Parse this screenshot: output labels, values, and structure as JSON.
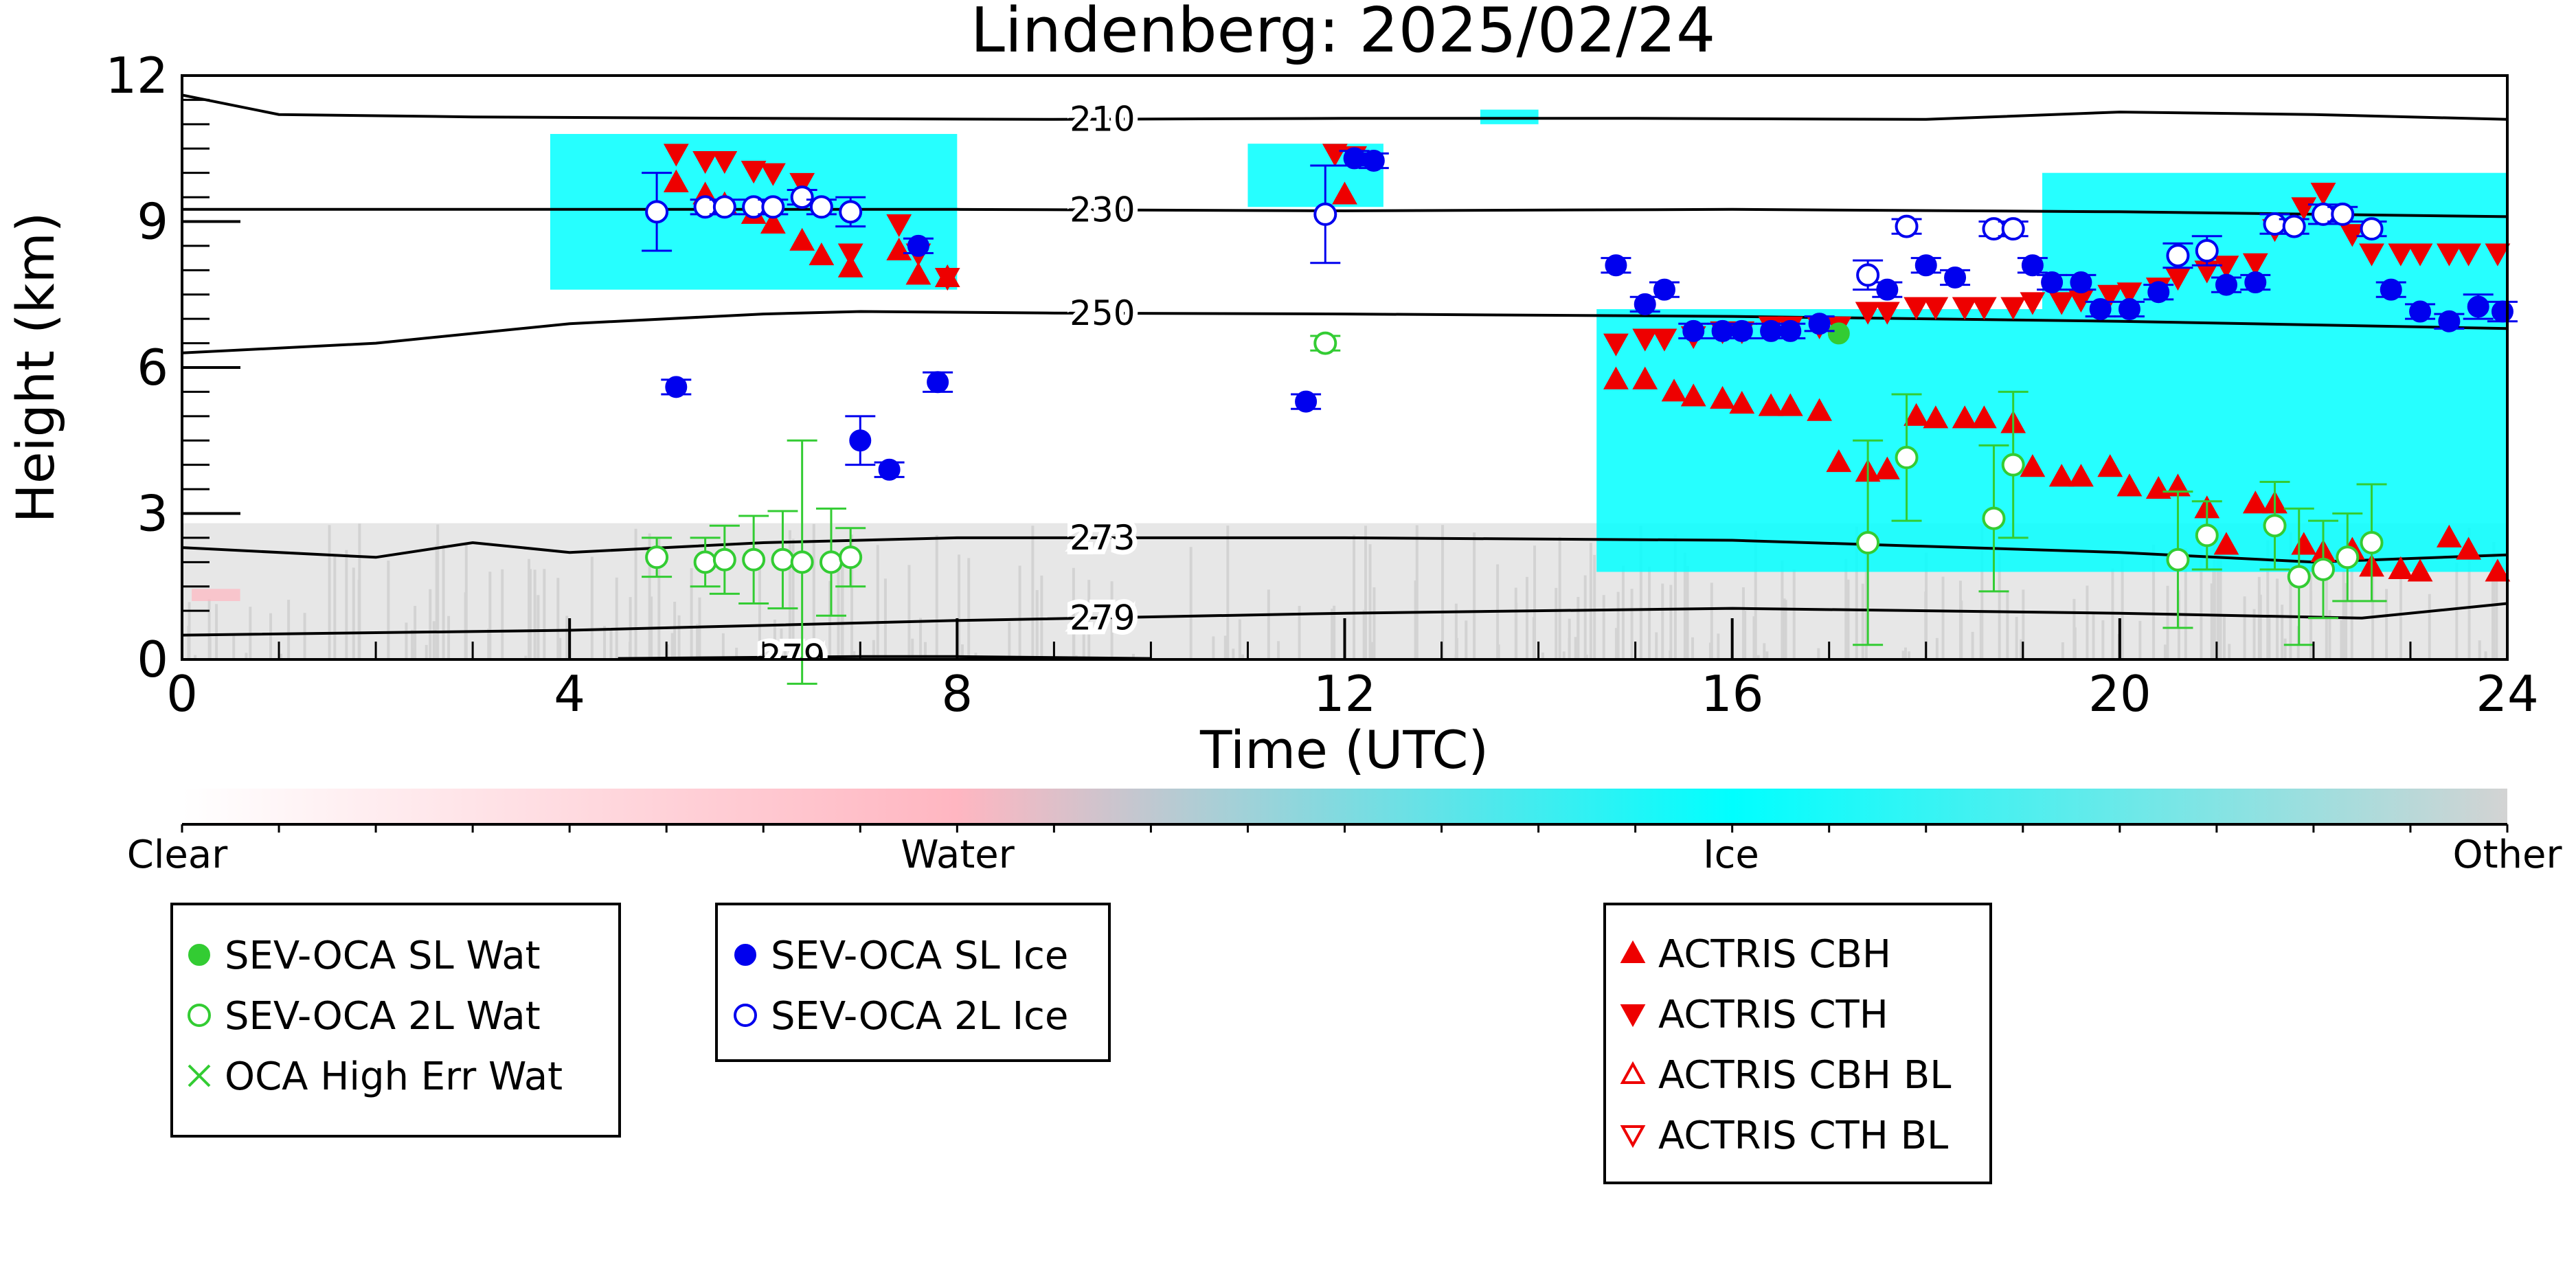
{
  "chart_data": {
    "type": "scatter",
    "title": "Lindenberg: 2025/02/24",
    "xlabel": "Time (UTC)",
    "ylabel": "Height (km)",
    "xlim": [
      0,
      24
    ],
    "ylim": [
      0,
      12
    ],
    "x_ticks": [
      "0",
      "4",
      "8",
      "12",
      "16",
      "20",
      "24"
    ],
    "y_ticks": [
      "0",
      "3",
      "6",
      "9",
      "12"
    ],
    "background_classification": {
      "colorbar_labels": [
        "Clear",
        "Water",
        "Ice",
        "Other"
      ],
      "colors": {
        "Clear": "#ffffff",
        "Water": "#ffb6c1",
        "Ice": "#00ffff",
        "Other": "#d3d3d3"
      },
      "ice_regions": [
        {
          "x0": 3.8,
          "x1": 8.0,
          "y0": 7.6,
          "y1": 10.8
        },
        {
          "x0": 11.0,
          "x1": 12.4,
          "y0": 9.3,
          "y1": 10.6
        },
        {
          "x0": 13.4,
          "x1": 14.0,
          "y0": 11.0,
          "y1": 11.3
        },
        {
          "x0": 14.6,
          "x1": 24.0,
          "y0": 1.8,
          "y1": 7.2
        },
        {
          "x0": 19.2,
          "x1": 24.0,
          "y0": 7.2,
          "y1": 10.0
        }
      ],
      "other_below_km": 2.8
    },
    "isotherms": [
      {
        "label": "210",
        "x": [
          0,
          1,
          3,
          6,
          9,
          12,
          15,
          18,
          20,
          22,
          24
        ],
        "y": [
          11.6,
          11.2,
          11.15,
          11.12,
          11.1,
          11.12,
          11.12,
          11.1,
          11.25,
          11.2,
          11.1
        ]
      },
      {
        "label": "230",
        "x": [
          0,
          4,
          8,
          12,
          16,
          20,
          24
        ],
        "y": [
          9.25,
          9.25,
          9.25,
          9.22,
          9.25,
          9.2,
          9.1
        ]
      },
      {
        "label": "250",
        "x": [
          0,
          2,
          4,
          6,
          7,
          9,
          12,
          16,
          20,
          24
        ],
        "y": [
          6.3,
          6.5,
          6.9,
          7.1,
          7.15,
          7.12,
          7.1,
          7.05,
          6.95,
          6.8
        ]
      },
      {
        "label": "273",
        "x": [
          0,
          2,
          3,
          4,
          6,
          8,
          12,
          16,
          20,
          22,
          24
        ],
        "y": [
          2.3,
          2.1,
          2.4,
          2.2,
          2.4,
          2.5,
          2.5,
          2.45,
          2.2,
          2.0,
          2.15
        ]
      },
      {
        "label": "279",
        "x": [
          0,
          4,
          8,
          12,
          16,
          20,
          22.5,
          24
        ],
        "y": [
          0.5,
          0.6,
          0.8,
          0.95,
          1.05,
          0.95,
          0.85,
          1.15
        ]
      },
      {
        "label": "279",
        "x": [
          4.5,
          7,
          8,
          10
        ],
        "y": [
          0.02,
          0.06,
          0.06,
          0.02
        ]
      }
    ],
    "series": [
      {
        "name": "SEV-OCA SL Wat",
        "marker": "filled-circle",
        "color": "#33cc33",
        "points": [
          {
            "x": 17.1,
            "y": 6.7
          }
        ]
      },
      {
        "name": "SEV-OCA 2L Wat",
        "marker": "open-circle",
        "color": "#33cc33",
        "points": [
          {
            "x": 4.9,
            "y": 2.1,
            "e": 0.4
          },
          {
            "x": 5.4,
            "y": 2.0,
            "e": 0.5
          },
          {
            "x": 5.6,
            "y": 2.05,
            "e": 0.7
          },
          {
            "x": 5.9,
            "y": 2.05,
            "e": 0.9
          },
          {
            "x": 6.2,
            "y": 2.05,
            "e": 1.0
          },
          {
            "x": 6.4,
            "y": 2.0,
            "e": 2.5
          },
          {
            "x": 6.7,
            "y": 2.0,
            "e": 1.1
          },
          {
            "x": 6.9,
            "y": 2.1,
            "e": 0.6
          },
          {
            "x": 11.8,
            "y": 6.5,
            "e": 0.15
          },
          {
            "x": 17.4,
            "y": 2.4,
            "e": 2.1
          },
          {
            "x": 17.8,
            "y": 4.15,
            "e": 1.3
          },
          {
            "x": 18.7,
            "y": 2.9,
            "e": 1.5
          },
          {
            "x": 18.9,
            "y": 4.0,
            "e": 1.5
          },
          {
            "x": 20.6,
            "y": 2.05,
            "e": 1.4
          },
          {
            "x": 20.9,
            "y": 2.55,
            "e": 0.7
          },
          {
            "x": 21.6,
            "y": 2.75,
            "e": 0.9
          },
          {
            "x": 21.85,
            "y": 1.7,
            "e": 1.4
          },
          {
            "x": 22.1,
            "y": 1.85,
            "e": 1.0
          },
          {
            "x": 22.35,
            "y": 2.1,
            "e": 0.9
          },
          {
            "x": 22.6,
            "y": 2.4,
            "e": 1.2
          }
        ]
      },
      {
        "name": "OCA High Err Wat",
        "marker": "x",
        "color": "#33cc33",
        "points": []
      },
      {
        "name": "SEV-OCA SL Ice",
        "marker": "filled-circle",
        "color": "#0000ee",
        "points": [
          {
            "x": 5.1,
            "y": 5.6,
            "e": 0.15
          },
          {
            "x": 7.0,
            "y": 4.5,
            "e": 0.5
          },
          {
            "x": 7.3,
            "y": 3.9,
            "e": 0.15
          },
          {
            "x": 7.6,
            "y": 8.5,
            "e": 0.15
          },
          {
            "x": 7.8,
            "y": 5.7,
            "e": 0.2
          },
          {
            "x": 11.6,
            "y": 5.3,
            "e": 0.15
          },
          {
            "x": 12.1,
            "y": 10.3,
            "e": 0.15
          },
          {
            "x": 12.3,
            "y": 10.25,
            "e": 0.15
          },
          {
            "x": 14.8,
            "y": 8.1,
            "e": 0.15
          },
          {
            "x": 15.1,
            "y": 7.3,
            "e": 0.15
          },
          {
            "x": 15.3,
            "y": 7.6,
            "e": 0.15
          },
          {
            "x": 15.6,
            "y": 6.75,
            "e": 0.15
          },
          {
            "x": 15.9,
            "y": 6.75,
            "e": 0.15
          },
          {
            "x": 16.1,
            "y": 6.75,
            "e": 0.15
          },
          {
            "x": 16.4,
            "y": 6.75,
            "e": 0.15
          },
          {
            "x": 16.6,
            "y": 6.75,
            "e": 0.15
          },
          {
            "x": 16.9,
            "y": 6.9,
            "e": 0.15
          },
          {
            "x": 17.6,
            "y": 7.6,
            "e": 0.15
          },
          {
            "x": 18.0,
            "y": 8.1,
            "e": 0.15
          },
          {
            "x": 18.3,
            "y": 7.85,
            "e": 0.15
          },
          {
            "x": 19.1,
            "y": 8.1,
            "e": 0.15
          },
          {
            "x": 19.3,
            "y": 7.75,
            "e": 0.15
          },
          {
            "x": 19.6,
            "y": 7.75,
            "e": 0.15
          },
          {
            "x": 19.8,
            "y": 7.2,
            "e": 0.15
          },
          {
            "x": 20.1,
            "y": 7.2,
            "e": 0.15
          },
          {
            "x": 20.4,
            "y": 7.55,
            "e": 0.15
          },
          {
            "x": 21.1,
            "y": 7.7,
            "e": 0.15
          },
          {
            "x": 21.4,
            "y": 7.75,
            "e": 0.15
          },
          {
            "x": 22.8,
            "y": 7.6,
            "e": 0.15
          },
          {
            "x": 23.1,
            "y": 7.15,
            "e": 0.15
          },
          {
            "x": 23.4,
            "y": 6.95,
            "e": 0.15
          },
          {
            "x": 23.7,
            "y": 7.25,
            "e": 0.25
          },
          {
            "x": 23.95,
            "y": 7.15,
            "e": 0.2
          }
        ]
      },
      {
        "name": "SEV-OCA 2L Ice",
        "marker": "open-circle",
        "color": "#0000ee",
        "points": [
          {
            "x": 4.9,
            "y": 9.2,
            "e": 0.8
          },
          {
            "x": 5.4,
            "y": 9.3,
            "e": 0.15
          },
          {
            "x": 5.6,
            "y": 9.3,
            "e": 0.15
          },
          {
            "x": 5.9,
            "y": 9.3,
            "e": 0.15
          },
          {
            "x": 6.1,
            "y": 9.3,
            "e": 0.15
          },
          {
            "x": 6.4,
            "y": 9.5,
            "e": 0.15
          },
          {
            "x": 6.6,
            "y": 9.3,
            "e": 0.15
          },
          {
            "x": 6.9,
            "y": 9.2,
            "e": 0.3
          },
          {
            "x": 11.8,
            "y": 9.15,
            "e": 1.0
          },
          {
            "x": 17.4,
            "y": 7.9,
            "e": 0.3
          },
          {
            "x": 17.8,
            "y": 8.9,
            "e": 0.15
          },
          {
            "x": 18.7,
            "y": 8.85,
            "e": 0.15
          },
          {
            "x": 18.9,
            "y": 8.85,
            "e": 0.15
          },
          {
            "x": 20.6,
            "y": 8.3,
            "e": 0.25
          },
          {
            "x": 20.9,
            "y": 8.4,
            "e": 0.3
          },
          {
            "x": 21.6,
            "y": 8.95,
            "e": 0.2
          },
          {
            "x": 21.8,
            "y": 8.9,
            "e": 0.15
          },
          {
            "x": 22.1,
            "y": 9.15,
            "e": 0.2
          },
          {
            "x": 22.3,
            "y": 9.15,
            "e": 0.15
          },
          {
            "x": 22.6,
            "y": 8.85,
            "e": 0.15
          }
        ]
      },
      {
        "name": "ACTRIS CBH",
        "marker": "triangle-up-filled",
        "color": "#ee0000",
        "points": [
          {
            "x": 5.1,
            "y": 9.8
          },
          {
            "x": 5.4,
            "y": 9.55
          },
          {
            "x": 5.6,
            "y": 9.35
          },
          {
            "x": 5.9,
            "y": 9.15
          },
          {
            "x": 6.1,
            "y": 8.95
          },
          {
            "x": 6.4,
            "y": 8.6
          },
          {
            "x": 6.6,
            "y": 8.3
          },
          {
            "x": 6.9,
            "y": 8.05
          },
          {
            "x": 7.4,
            "y": 8.4
          },
          {
            "x": 7.6,
            "y": 7.9
          },
          {
            "x": 7.9,
            "y": 7.85
          },
          {
            "x": 12.0,
            "y": 9.55
          },
          {
            "x": 14.8,
            "y": 5.75
          },
          {
            "x": 15.1,
            "y": 5.75
          },
          {
            "x": 15.4,
            "y": 5.5
          },
          {
            "x": 15.6,
            "y": 5.4
          },
          {
            "x": 15.9,
            "y": 5.35
          },
          {
            "x": 16.1,
            "y": 5.25
          },
          {
            "x": 16.4,
            "y": 5.2
          },
          {
            "x": 16.6,
            "y": 5.2
          },
          {
            "x": 16.9,
            "y": 5.1
          },
          {
            "x": 17.1,
            "y": 4.05
          },
          {
            "x": 17.4,
            "y": 3.85
          },
          {
            "x": 17.6,
            "y": 3.9
          },
          {
            "x": 17.9,
            "y": 5.0
          },
          {
            "x": 18.1,
            "y": 4.95
          },
          {
            "x": 18.4,
            "y": 4.95
          },
          {
            "x": 18.6,
            "y": 4.95
          },
          {
            "x": 18.9,
            "y": 4.85
          },
          {
            "x": 19.1,
            "y": 3.95
          },
          {
            "x": 19.4,
            "y": 3.75
          },
          {
            "x": 19.6,
            "y": 3.75
          },
          {
            "x": 19.9,
            "y": 3.95
          },
          {
            "x": 20.1,
            "y": 3.55
          },
          {
            "x": 20.4,
            "y": 3.5
          },
          {
            "x": 20.6,
            "y": 3.55
          },
          {
            "x": 20.9,
            "y": 3.1
          },
          {
            "x": 21.1,
            "y": 2.35
          },
          {
            "x": 21.4,
            "y": 3.2
          },
          {
            "x": 21.6,
            "y": 3.2
          },
          {
            "x": 21.9,
            "y": 2.35
          },
          {
            "x": 22.1,
            "y": 2.2
          },
          {
            "x": 22.4,
            "y": 2.25
          },
          {
            "x": 22.6,
            "y": 1.9
          },
          {
            "x": 22.9,
            "y": 1.85
          },
          {
            "x": 23.1,
            "y": 1.8
          },
          {
            "x": 23.4,
            "y": 2.5
          },
          {
            "x": 23.6,
            "y": 2.25
          },
          {
            "x": 23.9,
            "y": 1.8
          }
        ]
      },
      {
        "name": "ACTRIS CTH",
        "marker": "triangle-down-filled",
        "color": "#ee0000",
        "points": [
          {
            "x": 5.1,
            "y": 10.4
          },
          {
            "x": 5.4,
            "y": 10.25
          },
          {
            "x": 5.6,
            "y": 10.25
          },
          {
            "x": 5.9,
            "y": 10.05
          },
          {
            "x": 6.1,
            "y": 10.0
          },
          {
            "x": 6.4,
            "y": 9.8
          },
          {
            "x": 6.9,
            "y": 8.35
          },
          {
            "x": 7.4,
            "y": 8.95
          },
          {
            "x": 7.6,
            "y": 8.35
          },
          {
            "x": 7.9,
            "y": 7.85
          },
          {
            "x": 11.9,
            "y": 10.4
          },
          {
            "x": 12.1,
            "y": 10.35
          },
          {
            "x": 14.8,
            "y": 6.5
          },
          {
            "x": 15.1,
            "y": 6.6
          },
          {
            "x": 15.3,
            "y": 6.6
          },
          {
            "x": 15.6,
            "y": 6.65
          },
          {
            "x": 15.9,
            "y": 6.75
          },
          {
            "x": 16.1,
            "y": 6.75
          },
          {
            "x": 16.4,
            "y": 6.85
          },
          {
            "x": 16.6,
            "y": 6.85
          },
          {
            "x": 16.9,
            "y": 6.85
          },
          {
            "x": 17.1,
            "y": 6.85
          },
          {
            "x": 17.4,
            "y": 7.15
          },
          {
            "x": 17.6,
            "y": 7.15
          },
          {
            "x": 17.9,
            "y": 7.25
          },
          {
            "x": 18.1,
            "y": 7.25
          },
          {
            "x": 18.4,
            "y": 7.25
          },
          {
            "x": 18.6,
            "y": 7.25
          },
          {
            "x": 18.9,
            "y": 7.25
          },
          {
            "x": 19.1,
            "y": 7.35
          },
          {
            "x": 19.4,
            "y": 7.35
          },
          {
            "x": 19.6,
            "y": 7.4
          },
          {
            "x": 19.9,
            "y": 7.5
          },
          {
            "x": 20.1,
            "y": 7.55
          },
          {
            "x": 20.4,
            "y": 7.65
          },
          {
            "x": 20.6,
            "y": 7.85
          },
          {
            "x": 20.9,
            "y": 8.0
          },
          {
            "x": 21.1,
            "y": 8.1
          },
          {
            "x": 21.4,
            "y": 8.15
          },
          {
            "x": 21.6,
            "y": 8.85
          },
          {
            "x": 21.9,
            "y": 9.3
          },
          {
            "x": 22.1,
            "y": 9.6
          },
          {
            "x": 22.4,
            "y": 8.75
          },
          {
            "x": 22.6,
            "y": 8.35
          },
          {
            "x": 22.9,
            "y": 8.35
          },
          {
            "x": 23.1,
            "y": 8.35
          },
          {
            "x": 23.4,
            "y": 8.35
          },
          {
            "x": 23.6,
            "y": 8.35
          },
          {
            "x": 23.9,
            "y": 8.35
          }
        ]
      },
      {
        "name": "ACTRIS CBH BL",
        "marker": "triangle-up-open",
        "color": "#ee0000",
        "points": []
      },
      {
        "name": "ACTRIS CTH BL",
        "marker": "triangle-down-open",
        "color": "#ee0000",
        "points": []
      }
    ]
  },
  "legend_groups": [
    [
      "SEV-OCA SL Wat",
      "SEV-OCA 2L Wat",
      "OCA High Err Wat"
    ],
    [
      "SEV-OCA SL Ice",
      "SEV-OCA 2L Ice"
    ],
    [
      "ACTRIS CBH",
      "ACTRIS CTH",
      "ACTRIS CBH BL",
      "ACTRIS CTH BL"
    ]
  ]
}
